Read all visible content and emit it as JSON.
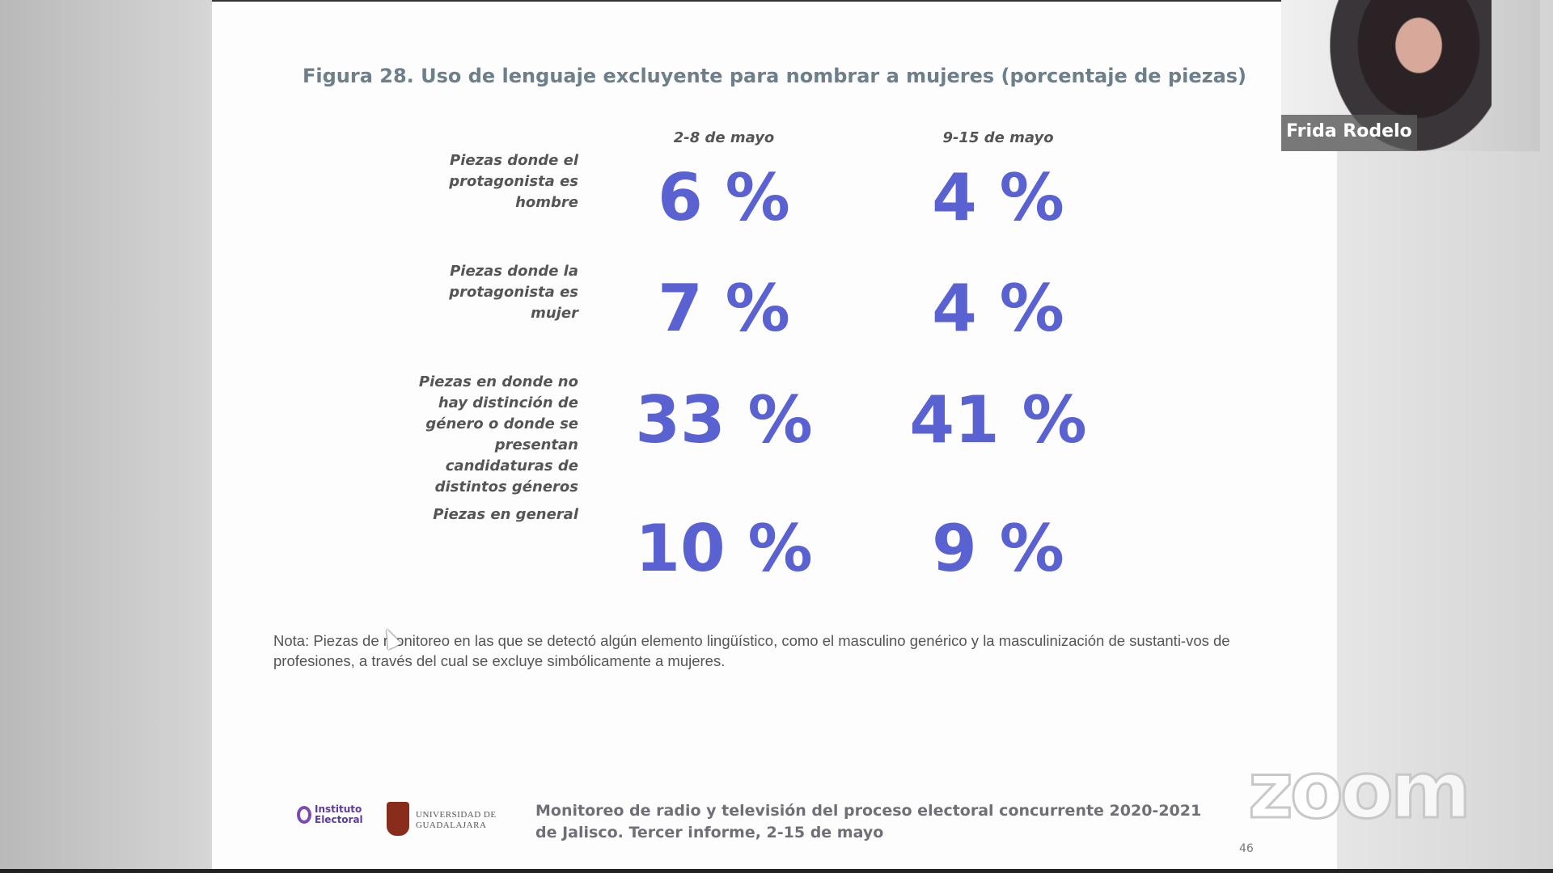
{
  "slide": {
    "title": "Figura 28. Uso de lenguaje excluyente para nombrar a mujeres (porcentaje de piezas)",
    "columns": [
      "2-8 de mayo",
      "9-15 de mayo"
    ],
    "rows": [
      {
        "label": [
          "Piezas donde el",
          "protagonista es",
          "hombre"
        ],
        "values": [
          "6 %",
          "4 %"
        ]
      },
      {
        "label": [
          "Piezas donde la",
          "protagonista es",
          "mujer"
        ],
        "values": [
          "7 %",
          "4 %"
        ]
      },
      {
        "label": [
          "Piezas en donde no",
          "hay distinción de",
          "género o donde se",
          "presentan",
          "candidaturas de",
          "distintos géneros"
        ],
        "values": [
          "33 %",
          "41 %"
        ]
      },
      {
        "label": [
          "Piezas en general"
        ],
        "values": [
          "10 %",
          "9 %"
        ]
      }
    ],
    "note": "Nota: Piezas de monitoreo en las que se detectó algún elemento lingüístico, como el masculino genérico y la masculinización de sustanti-vos de profesiones, a través del cual se excluye simbólicamente a mujeres.",
    "footer": [
      "Monitoreo de radio y televisión del proceso electoral concurrente 2020-2021",
      "de Jalisco. Tercer informe, 2-15 de mayo"
    ],
    "page_number": "46",
    "logos": {
      "ie": [
        "Instituto",
        "Electoral"
      ],
      "udg": [
        "UNIVERSIDAD DE",
        "GUADALAJARA"
      ]
    }
  },
  "video": {
    "participant_name": "Frida Rodelo"
  },
  "watermark": "zoom",
  "colors": {
    "accent": "#5a62d2",
    "title": "#6c7f8a"
  }
}
